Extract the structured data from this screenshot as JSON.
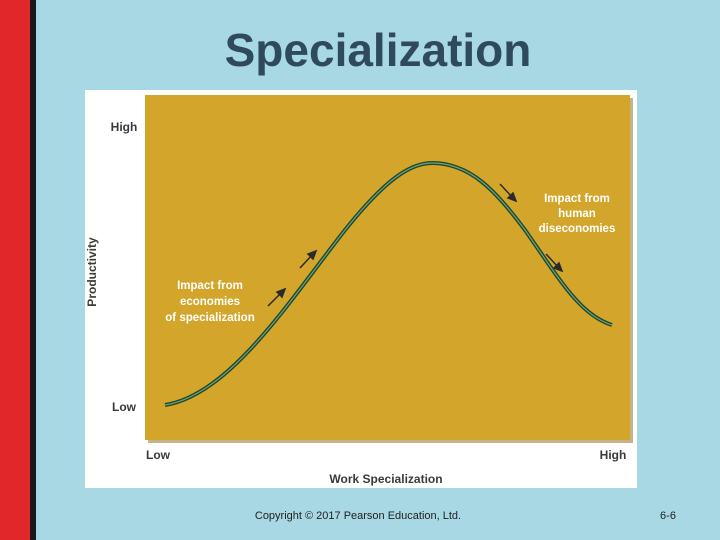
{
  "title": "Specialization",
  "diagram": {
    "y_axis": {
      "label": "Productivity",
      "high": "High",
      "low": "Low"
    },
    "x_axis": {
      "label": "Work Specialization",
      "low": "Low",
      "high": "High"
    },
    "annotations": {
      "left": [
        "Impact from",
        "economies",
        "of specialization"
      ],
      "right": [
        "Impact from",
        "human",
        "diseconomies"
      ]
    }
  },
  "footer": {
    "copyright": "Copyright © 2017 Pearson Education, Ltd.",
    "page": "6-6"
  }
}
